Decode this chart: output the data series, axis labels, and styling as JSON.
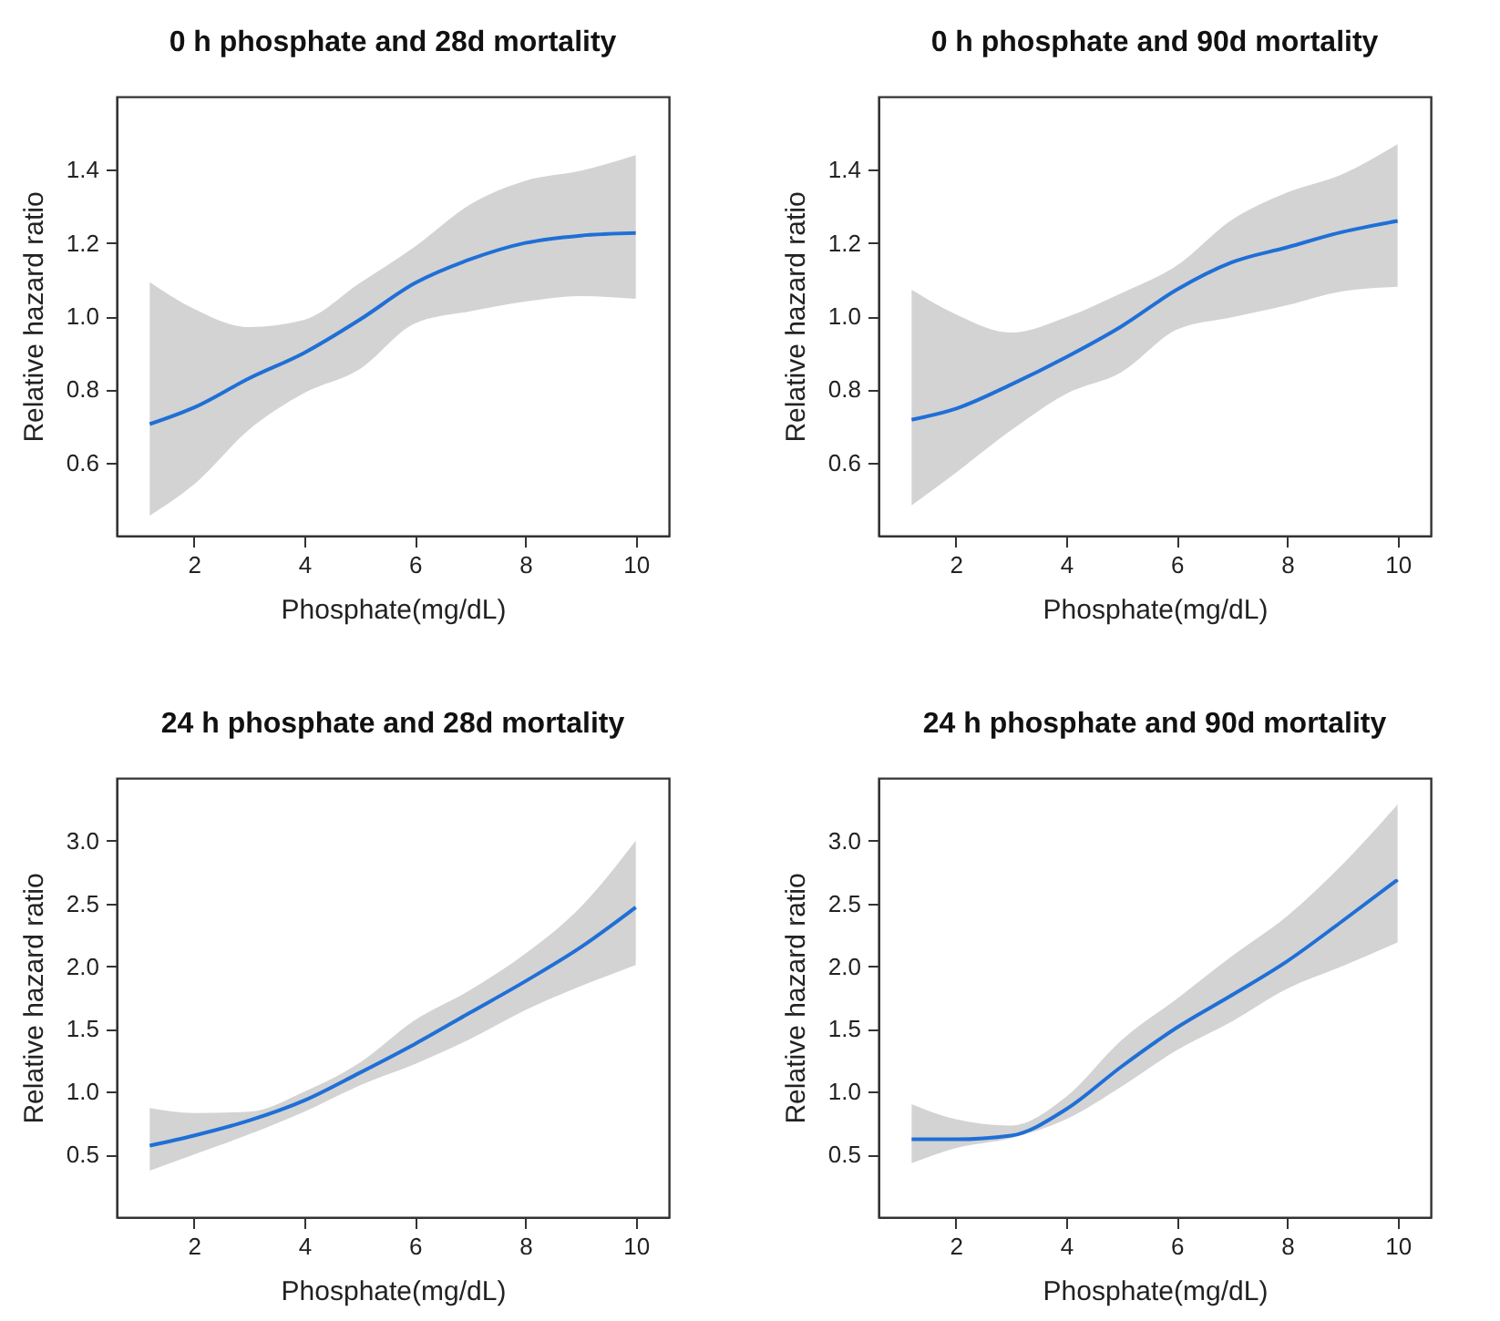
{
  "chart_data": [
    {
      "type": "line",
      "title": "0 h phosphate and 28d mortality",
      "xlabel": "Phosphate(mg/dL)",
      "ylabel": "Relative hazard ratio",
      "x": [
        1.2,
        2,
        3,
        4,
        5,
        6,
        7,
        8,
        9,
        10
      ],
      "xlim": [
        0.6,
        10.6
      ],
      "xticks": [
        2,
        4,
        6,
        8,
        10
      ],
      "ylim": [
        0.4,
        1.6
      ],
      "yticks": [
        0.6,
        0.8,
        {
          "value": 1,
          "label": "1.0"
        },
        1.2,
        1.4
      ],
      "series": [
        {
          "color": "#1f6fd6",
          "values": [
            0.705,
            0.75,
            0.83,
            0.9,
            0.99,
            1.09,
            1.155,
            1.2,
            1.22,
            1.227
          ],
          "lower": [
            0.455,
            0.54,
            0.69,
            0.79,
            0.855,
            0.98,
            1.013,
            1.04,
            1.055,
            1.047
          ],
          "upper": [
            1.093,
            1.02,
            0.97,
            0.99,
            1.09,
            1.19,
            1.305,
            1.37,
            1.397,
            1.44
          ]
        }
      ]
    },
    {
      "type": "line",
      "title": "0 h phosphate and 90d mortality",
      "xlabel": "Phosphate(mg/dL)",
      "ylabel": "Relative hazard ratio",
      "x": [
        1.2,
        2,
        3,
        4,
        5,
        6,
        7,
        8,
        9,
        10
      ],
      "xlim": [
        0.6,
        10.6
      ],
      "xticks": [
        2,
        4,
        6,
        8,
        10
      ],
      "ylim": [
        0.4,
        1.6
      ],
      "yticks": [
        0.6,
        0.8,
        {
          "value": 1,
          "label": "1.0"
        },
        1.2,
        1.4
      ],
      "series": [
        {
          "color": "#1f6fd6",
          "values": [
            0.717,
            0.747,
            0.813,
            0.888,
            0.972,
            1.072,
            1.147,
            1.188,
            1.23,
            1.26
          ],
          "lower": [
            0.483,
            0.572,
            0.688,
            0.788,
            0.847,
            0.963,
            0.997,
            1.03,
            1.068,
            1.08
          ],
          "upper": [
            1.072,
            1.005,
            0.955,
            0.997,
            1.063,
            1.138,
            1.263,
            1.338,
            1.388,
            1.47
          ]
        }
      ]
    },
    {
      "type": "line",
      "title": "24 h phosphate and 28d mortality",
      "xlabel": "Phosphate(mg/dL)",
      "ylabel": "Relative hazard ratio",
      "x": [
        1.2,
        2,
        3,
        4,
        5,
        6,
        7,
        8,
        9,
        10
      ],
      "xlim": [
        0.6,
        10.6
      ],
      "xticks": [
        2,
        4,
        6,
        8,
        10
      ],
      "ylim": [
        0,
        3.5
      ],
      "yticks": [
        0.5,
        {
          "value": 1,
          "label": "1.0"
        },
        1.5,
        {
          "value": 2,
          "label": "2.0"
        },
        2.5,
        {
          "value": 3,
          "label": "3.0"
        }
      ],
      "series": [
        {
          "color": "#1f6fd6",
          "values": [
            0.57,
            0.65,
            0.77,
            0.93,
            1.15,
            1.38,
            1.63,
            1.88,
            2.15,
            2.47
          ],
          "lower": [
            0.37,
            0.5,
            0.66,
            0.84,
            1.05,
            1.22,
            1.42,
            1.65,
            1.84,
            2.01
          ],
          "upper": [
            0.87,
            0.83,
            0.84,
            1.0,
            1.23,
            1.57,
            1.81,
            2.1,
            2.47,
            3.0
          ]
        }
      ]
    },
    {
      "type": "line",
      "title": "24 h phosphate and 90d mortality",
      "xlabel": "Phosphate(mg/dL)",
      "ylabel": "Relative hazard ratio",
      "x": [
        1.2,
        2,
        3,
        4,
        5,
        6,
        7,
        8,
        9,
        10
      ],
      "xlim": [
        0.6,
        10.6
      ],
      "xticks": [
        2,
        4,
        6,
        8,
        10
      ],
      "ylim": [
        0,
        3.5
      ],
      "yticks": [
        0.5,
        {
          "value": 1,
          "label": "1.0"
        },
        1.5,
        {
          "value": 2,
          "label": "2.0"
        },
        2.5,
        {
          "value": 3,
          "label": "3.0"
        }
      ],
      "series": [
        {
          "color": "#1f6fd6",
          "values": [
            0.62,
            0.62,
            0.65,
            0.86,
            1.2,
            1.51,
            1.77,
            2.04,
            2.36,
            2.69
          ],
          "lower": [
            0.43,
            0.55,
            0.63,
            0.78,
            1.04,
            1.33,
            1.56,
            1.82,
            2.0,
            2.19
          ],
          "upper": [
            0.9,
            0.78,
            0.73,
            0.96,
            1.41,
            1.74,
            2.08,
            2.4,
            2.81,
            3.29
          ]
        }
      ]
    }
  ]
}
